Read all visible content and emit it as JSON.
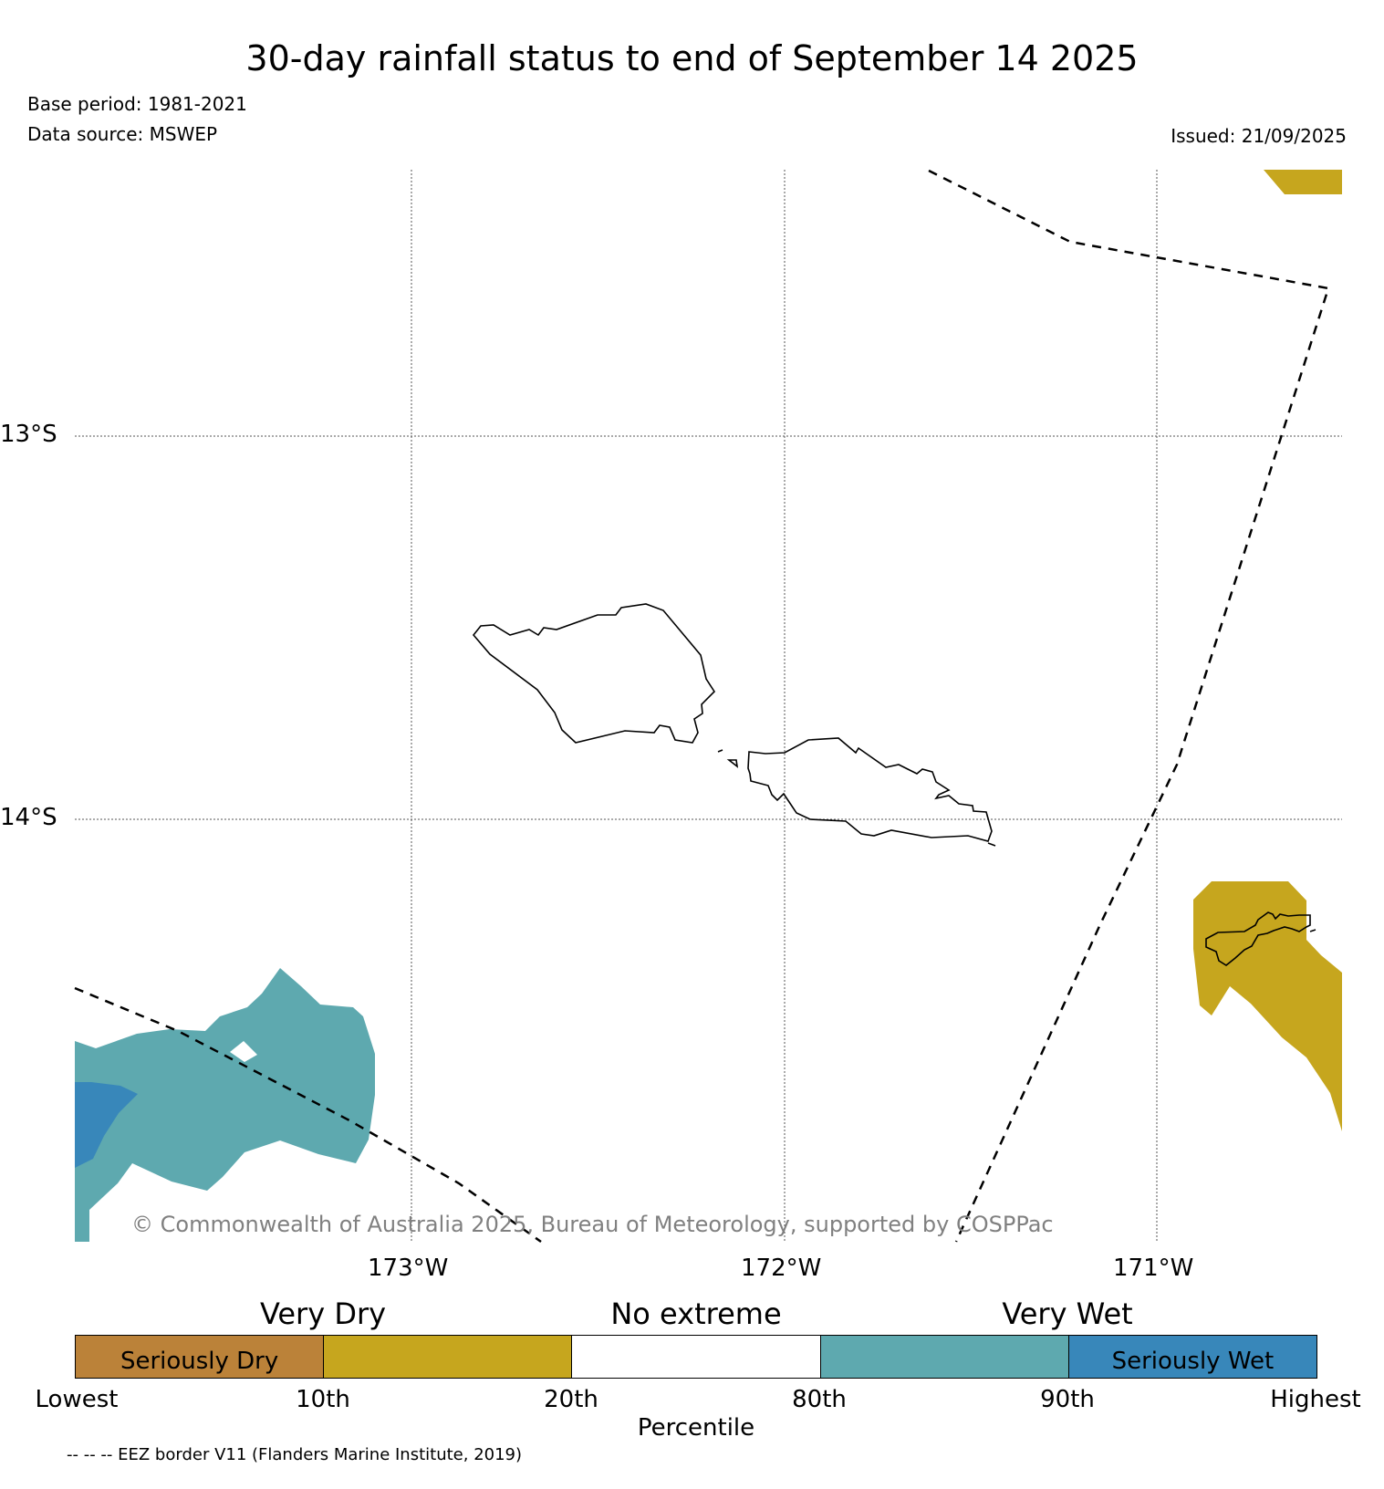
{
  "title": "30-day rainfall status to end of September 14 2025",
  "base_period": "Base period: 1981-2021",
  "data_source": "Data source: MSWEP",
  "issued": "Issued: 21/09/2025",
  "copyright": "© Commonwealth of Australia 2025, Bureau of Meteorology, supported by COSPPac",
  "footnote": "-- -- -- EEZ border V11 (Flanders Marine Institute, 2019)",
  "map": {
    "lat_labels": [
      "13°S",
      "14°S"
    ],
    "lon_labels": [
      "173°W",
      "172°W",
      "171°W"
    ],
    "colors": {
      "seriously_dry": "#bb8239",
      "very_dry": "#c6a61e",
      "no_extreme": "#ffffff",
      "very_wet": "#5ea9af",
      "seriously_wet": "#3887ba"
    }
  },
  "legend": {
    "groups": [
      "Very Dry",
      "No extreme",
      "Very Wet"
    ],
    "segments": [
      "Seriously Dry",
      "",
      "",
      "",
      "Seriously Wet"
    ],
    "percentiles": [
      "Lowest",
      "10th",
      "20th",
      "80th",
      "90th",
      "Highest"
    ],
    "axis_title": "Percentile"
  }
}
